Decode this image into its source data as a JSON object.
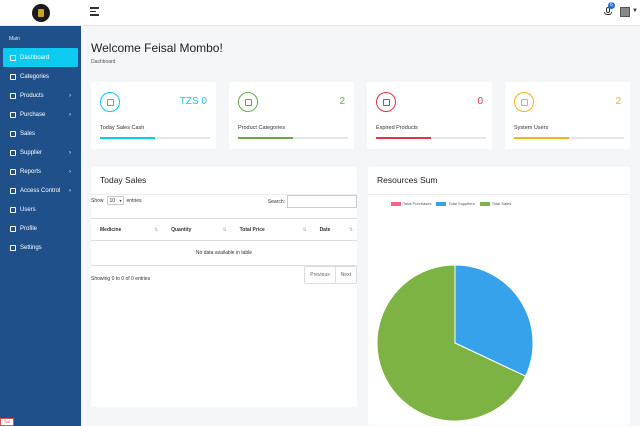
{
  "topbar": {
    "notification_count": "6"
  },
  "sidebar": {
    "section": "Main",
    "items": [
      {
        "label": "Dashboard",
        "icon": "home-icon",
        "caret": false,
        "active": true
      },
      {
        "label": "Categories",
        "icon": "categories-icon",
        "caret": false
      },
      {
        "label": "Products",
        "icon": "products-icon",
        "caret": true
      },
      {
        "label": "Purchase",
        "icon": "star-icon",
        "caret": true
      },
      {
        "label": "Sales",
        "icon": "chart-icon",
        "caret": false
      },
      {
        "label": "Supplier",
        "icon": "supplier-icon",
        "caret": true
      },
      {
        "label": "Reports",
        "icon": "reports-icon",
        "caret": true
      },
      {
        "label": "Access Control",
        "icon": "lock-icon",
        "caret": true
      },
      {
        "label": "Users",
        "icon": "users-icon",
        "caret": false
      },
      {
        "label": "Profile",
        "icon": "profile-icon",
        "caret": false
      },
      {
        "label": "Settings",
        "icon": "gear-icon",
        "caret": false
      }
    ],
    "footer": "Sal"
  },
  "header": {
    "title": "Welcome Feisal Mombo!",
    "breadcrumb": "Dashboard"
  },
  "stats": [
    {
      "label": "Today Sales Cash",
      "value": "TZS 0",
      "color": "#0dcaf0",
      "progress": 0.5
    },
    {
      "label": "Product Categories",
      "value": "2",
      "color": "#6aa84f",
      "progress": 0.5
    },
    {
      "label": "Expired Products",
      "value": "0",
      "color": "#dc3545",
      "progress": 0.5
    },
    {
      "label": "System Users",
      "value": "2",
      "color": "#f0b323",
      "progress": 0.5
    }
  ],
  "sales_table": {
    "title": "Today Sales",
    "show_label": "Show",
    "entries_value": "10",
    "entries_label": "entries",
    "search_label": "Search:",
    "columns": [
      "Medicine",
      "Quantity",
      "Total Price",
      "Date"
    ],
    "empty_message": "No data available in table",
    "info": "Showing 0 to 0 of 0 entries",
    "prev_label": "Previous",
    "next_label": "Next"
  },
  "resources": {
    "title": "Resources Sum"
  },
  "chart_data": {
    "type": "pie",
    "title": "Resources Sum",
    "labels": [
      "Total Purchases",
      "Total Suppliers",
      "Total Sales"
    ],
    "values": [
      0,
      32,
      68
    ],
    "colors": [
      "#ff6384",
      "#36a2eb",
      "#7cb342"
    ],
    "legend": "top"
  }
}
